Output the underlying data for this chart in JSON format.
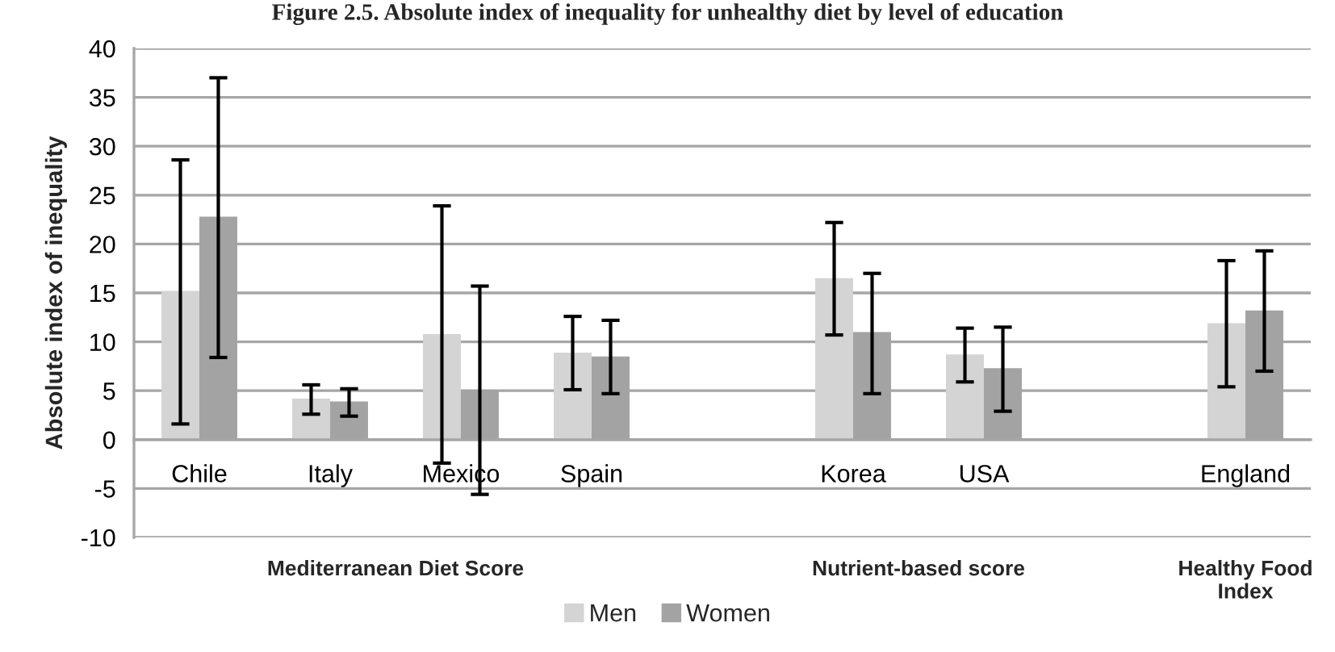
{
  "chart_data": {
    "type": "bar",
    "title": "Figure 2.5. Absolute index of inequality for unhealthy diet by level of education",
    "ylabel": "Absolute index of inequality",
    "categories": [
      "Chile",
      "Italy",
      "Mexico",
      "Spain",
      null,
      "Korea",
      "USA",
      null,
      "England"
    ],
    "series": [
      {
        "name": "Men",
        "color": "#d4d4d4",
        "values": [
          15.2,
          4.2,
          10.8,
          8.9,
          null,
          16.5,
          8.7,
          null,
          11.9
        ],
        "errors": [
          [
            1.6,
            28.6
          ],
          [
            2.6,
            5.6
          ],
          [
            -2.4,
            23.9
          ],
          [
            5.1,
            12.6
          ],
          null,
          [
            10.7,
            22.2
          ],
          [
            5.9,
            11.4
          ],
          null,
          [
            5.4,
            18.3
          ]
        ]
      },
      {
        "name": "Women",
        "color": "#a3a3a3",
        "values": [
          22.8,
          3.9,
          5.1,
          8.5,
          null,
          11.0,
          7.3,
          null,
          13.2
        ],
        "errors": [
          [
            8.4,
            37.0
          ],
          [
            2.4,
            5.2
          ],
          [
            -5.6,
            15.7
          ],
          [
            4.7,
            12.2
          ],
          null,
          [
            4.7,
            17.0
          ],
          [
            2.9,
            11.5
          ],
          null,
          [
            7.0,
            19.3
          ]
        ]
      }
    ],
    "ylim": [
      -10,
      40
    ],
    "yticks": [
      -10,
      -5,
      0,
      5,
      10,
      15,
      20,
      25,
      30,
      35,
      40
    ],
    "grid": "y",
    "legend": "bottom",
    "annotations": [
      "Mediterranean Diet Score",
      "Nutrient-based score",
      "Healthy Food\nIndex"
    ]
  }
}
